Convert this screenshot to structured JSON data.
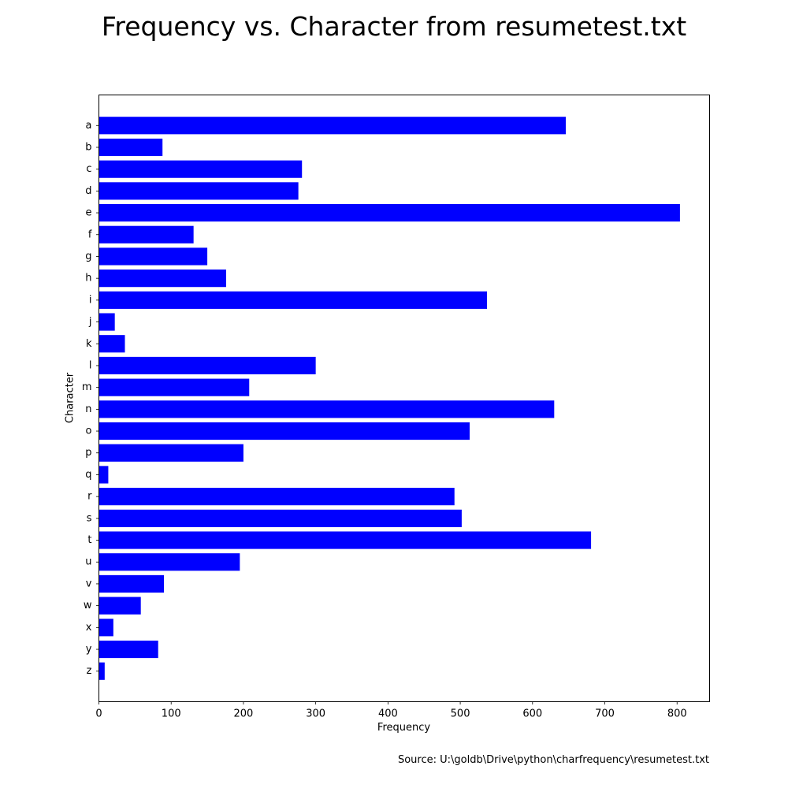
{
  "chart_data": {
    "type": "bar",
    "orientation": "horizontal",
    "title": "Frequency vs. Character from resumetest.txt",
    "xlabel": "Frequency",
    "ylabel": "Character",
    "caption": "Source: U:\\goldb\\Drive\\python\\charfrequency\\resumetest.txt",
    "xlim": [
      0,
      845
    ],
    "xticks": [
      0,
      100,
      200,
      300,
      400,
      500,
      600,
      700,
      800
    ],
    "grid": false,
    "bar_color": "#0000ff",
    "categories": [
      "a",
      "b",
      "c",
      "d",
      "e",
      "f",
      "g",
      "h",
      "i",
      "j",
      "k",
      "l",
      "m",
      "n",
      "o",
      "p",
      "q",
      "r",
      "s",
      "t",
      "u",
      "v",
      "w",
      "x",
      "y",
      "z"
    ],
    "values": [
      646,
      88,
      281,
      276,
      804,
      131,
      150,
      176,
      537,
      22,
      36,
      300,
      208,
      630,
      513,
      200,
      13,
      492,
      502,
      681,
      195,
      90,
      58,
      20,
      82,
      8
    ]
  }
}
